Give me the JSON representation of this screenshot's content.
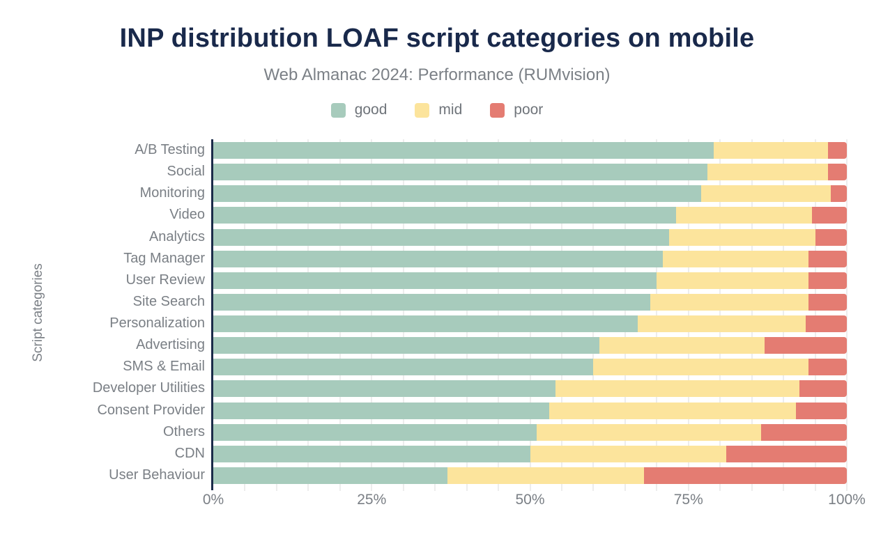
{
  "colors": {
    "background": "#ffffff",
    "title": "#19294b",
    "subtitle_gray": "#7b8086",
    "label_gray": "#7a7f85",
    "axis_navy": "#1b2b49",
    "gridline": "#ededed",
    "good": "#a7cbbc",
    "mid": "#fce49c",
    "poor": "#e47c72"
  },
  "chart_data": {
    "type": "bar",
    "orientation": "horizontal",
    "stacked": true,
    "title": "INP distribution LOAF script categories on mobile",
    "subtitle": "Web Almanac 2024: Performance (RUMvision)",
    "xlabel": "",
    "ylabel": "Script categories",
    "xlim": [
      0,
      100
    ],
    "unit": "percent",
    "grid": "vertical",
    "grid_step": 5,
    "legend_position": "top",
    "x_ticks": [
      {
        "label": "0%",
        "value": 0
      },
      {
        "label": "25%",
        "value": 25
      },
      {
        "label": "50%",
        "value": 50
      },
      {
        "label": "75%",
        "value": 75
      },
      {
        "label": "100%",
        "value": 100
      }
    ],
    "categories": [
      "A/B Testing",
      "Social",
      "Monitoring",
      "Video",
      "Analytics",
      "Tag Manager",
      "User Review",
      "Site Search",
      "Personalization",
      "Advertising",
      "SMS & Email",
      "Developer Utilities",
      "Consent Provider",
      "Others",
      "CDN",
      "User Behaviour"
    ],
    "series": [
      {
        "name": "good",
        "color": "#a7cbbc",
        "values": [
          79,
          78,
          77,
          73,
          72,
          71,
          70,
          69,
          67,
          61,
          60,
          54,
          53,
          51,
          50,
          37
        ]
      },
      {
        "name": "mid",
        "color": "#fce49c",
        "values": [
          18,
          19,
          20.5,
          21.5,
          23,
          23,
          24,
          25,
          26.5,
          26,
          34,
          38.5,
          39,
          35.5,
          31,
          31
        ]
      },
      {
        "name": "poor",
        "color": "#e47c72",
        "values": [
          3,
          3,
          2.5,
          5.5,
          5,
          6,
          6,
          6,
          6.5,
          13,
          6,
          7.5,
          8,
          13.5,
          19,
          32
        ]
      }
    ]
  }
}
